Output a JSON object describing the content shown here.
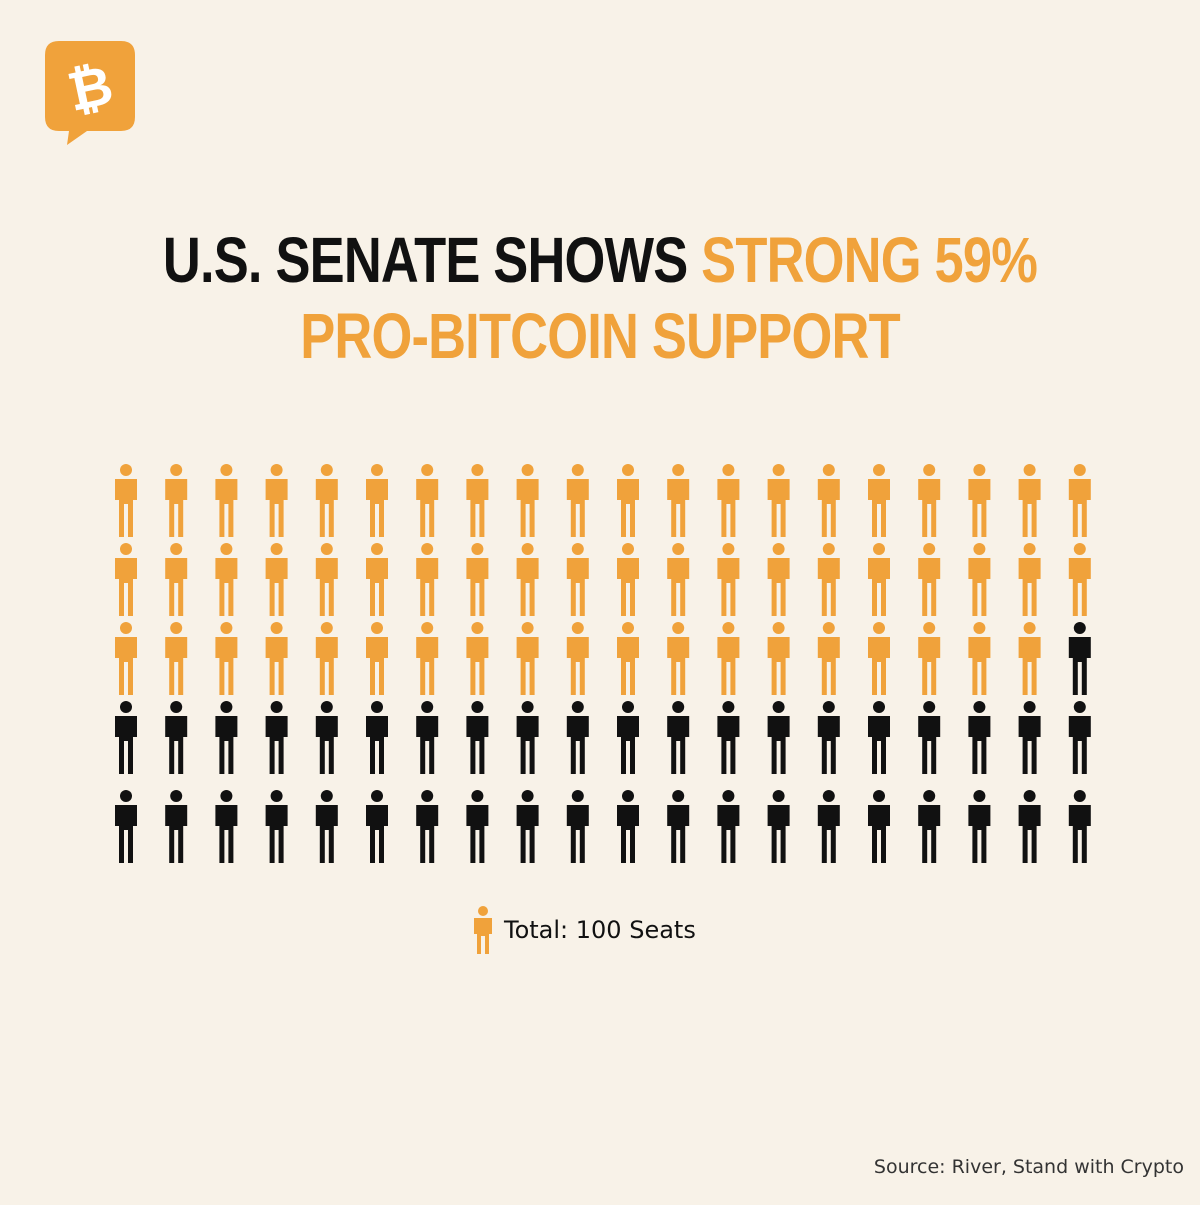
{
  "logo": {
    "icon": "bitcoin-speech-bubble-icon",
    "symbol": "₿"
  },
  "title": {
    "part1": "U.S. SENATE SHOWS ",
    "part2": "STRONG 59%",
    "part3": "PRO-BITCOIN SUPPORT"
  },
  "colors": {
    "background": "#f8f2e8",
    "accent": "#f0a23b",
    "dark": "#111111"
  },
  "chart_data": {
    "type": "pictograph",
    "total": 100,
    "columns": 20,
    "rows": 5,
    "series": [
      {
        "value": 59,
        "color": "#f0a23b"
      },
      {
        "value": 41,
        "color": "#111111"
      }
    ]
  },
  "legend": {
    "label": "Total: 100 Seats",
    "icon": "person-icon"
  },
  "source": "Source: River, Stand with Crypto"
}
